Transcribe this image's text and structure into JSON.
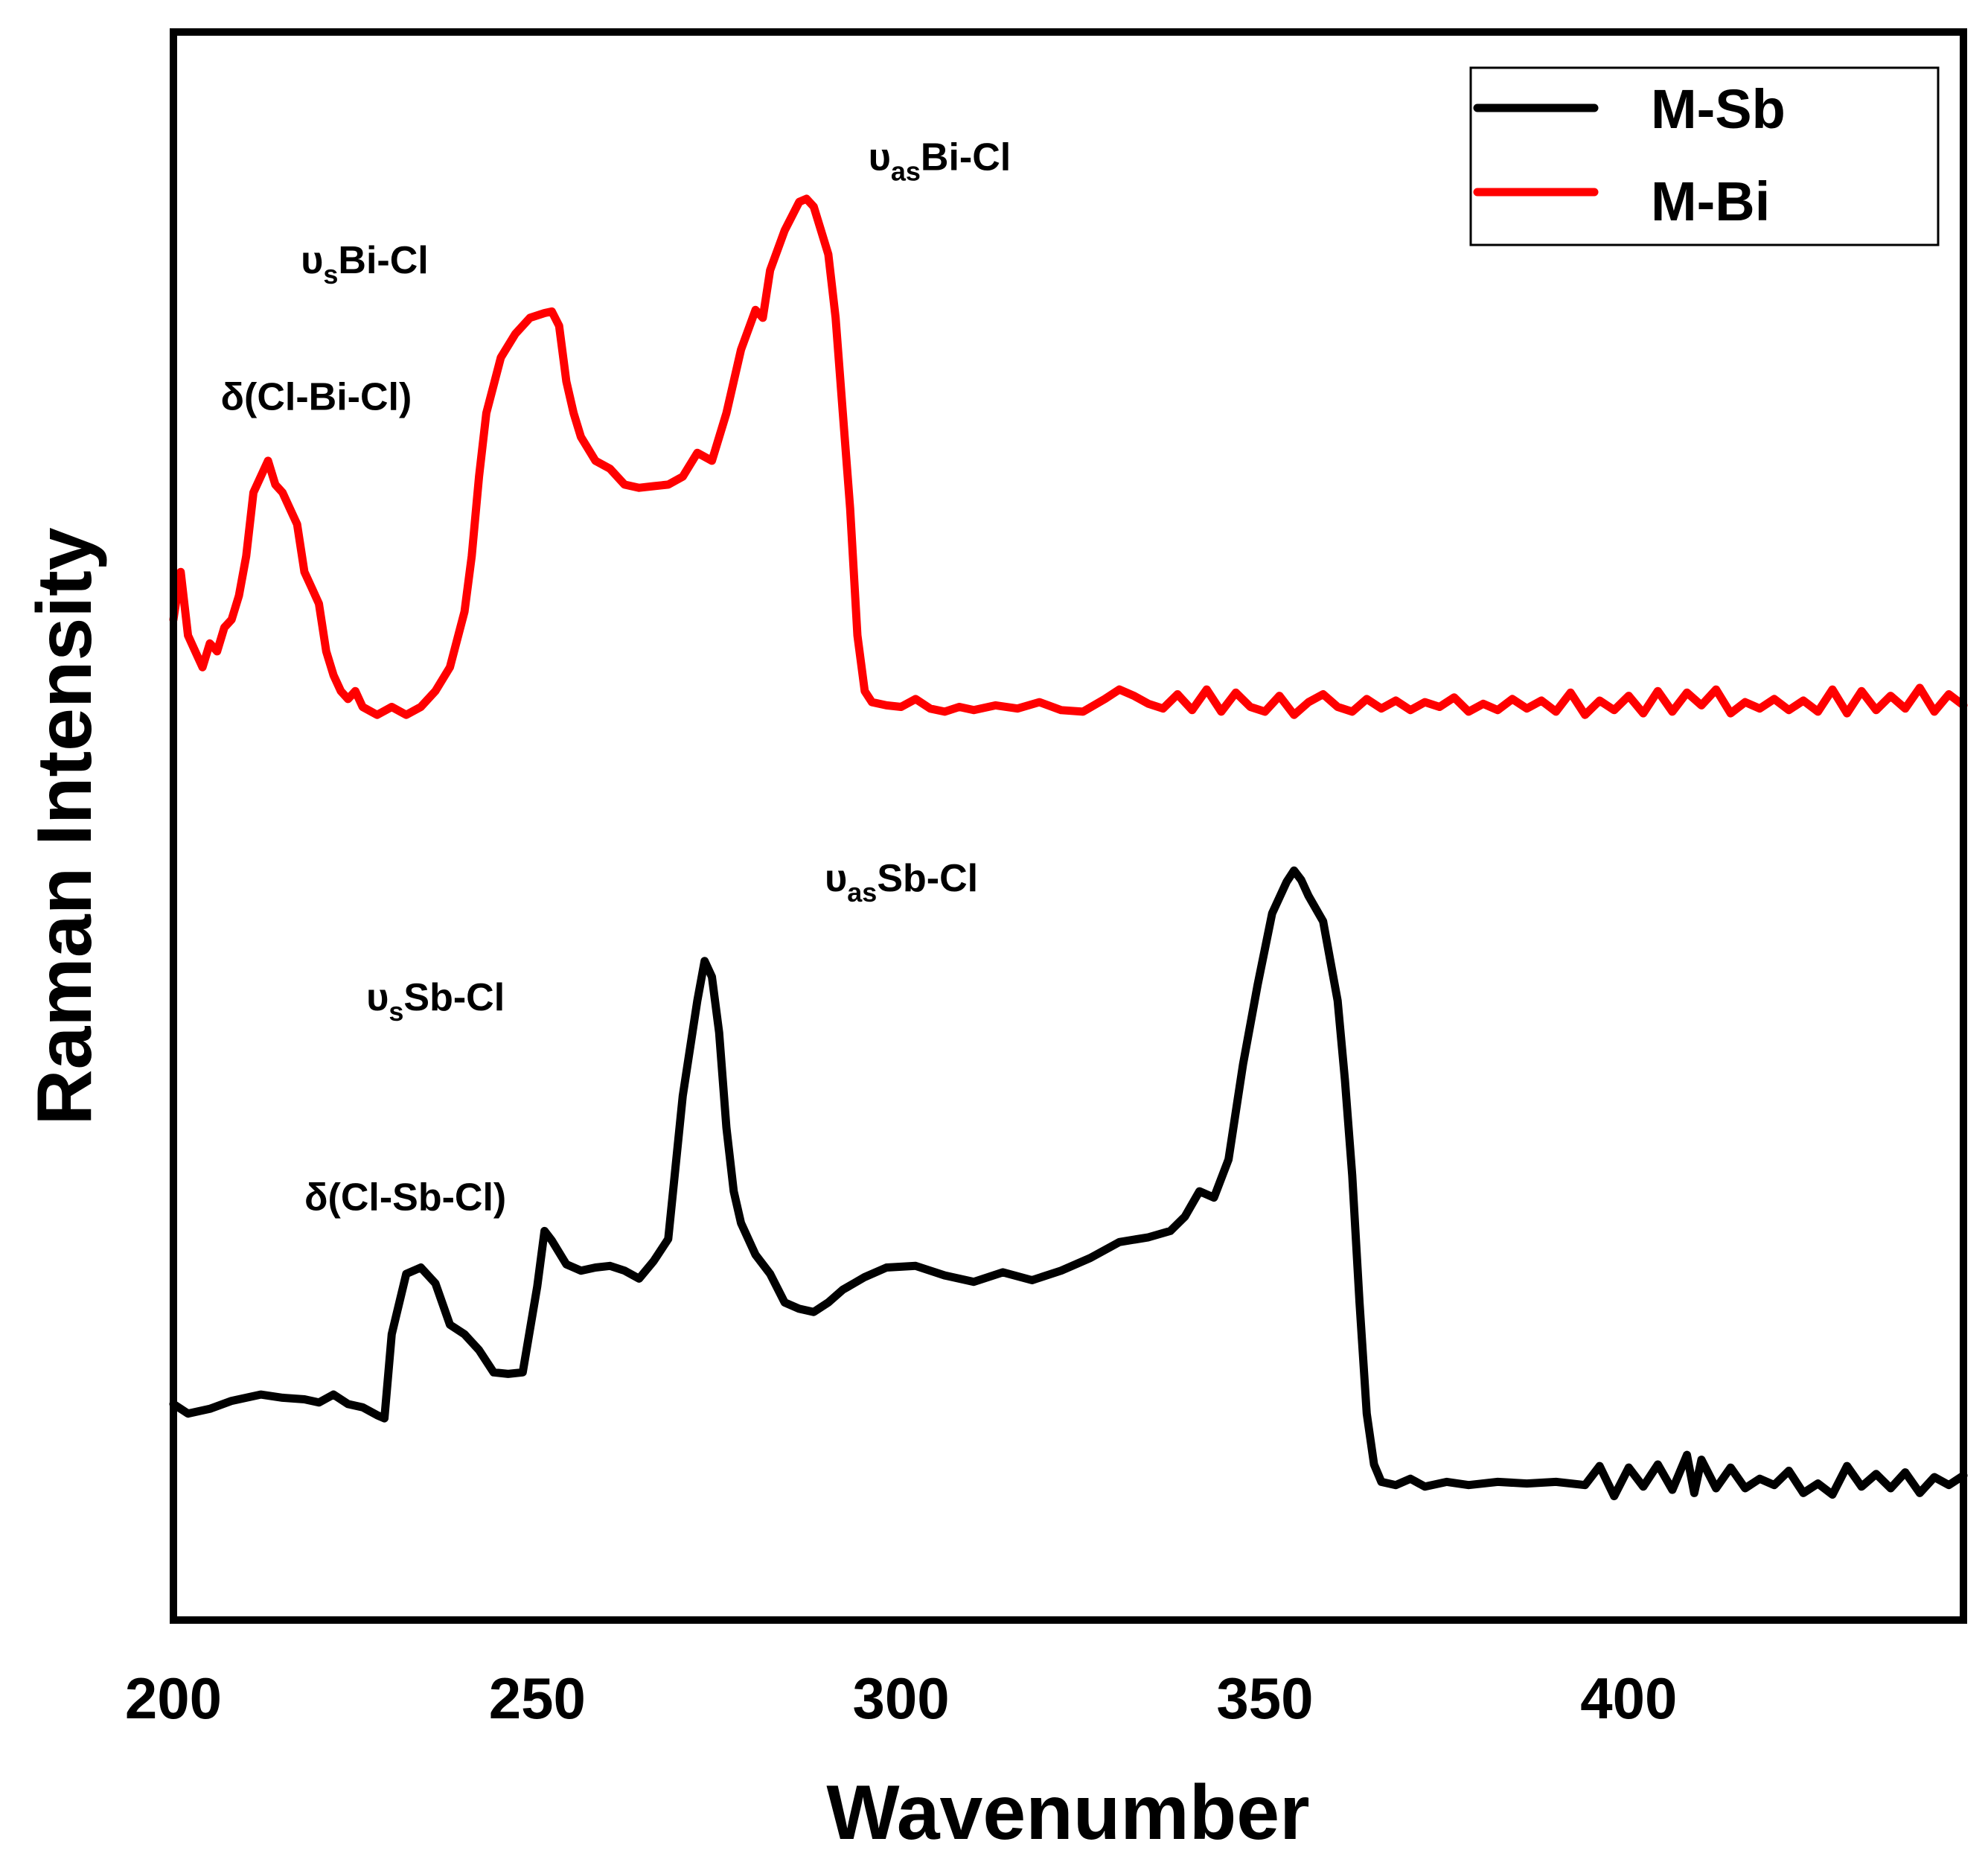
{
  "chart_data": {
    "type": "line",
    "title": "",
    "xlabel": "Wavenumber",
    "ylabel": "Raman Intensity",
    "xlim": [
      200,
      446
    ],
    "ylim": [
      0,
      100
    ],
    "xticks": [
      200,
      250,
      300,
      350,
      400
    ],
    "yticks_shown": false,
    "grid": false,
    "legend_position": "top-right",
    "series": [
      {
        "name": "M-Sb",
        "color": "#000000",
        "points": [
          [
            200,
            13.6
          ],
          [
            202,
            13.0
          ],
          [
            205,
            13.3
          ],
          [
            208,
            13.8
          ],
          [
            212,
            14.2
          ],
          [
            215,
            14.0
          ],
          [
            218,
            13.9
          ],
          [
            220,
            13.7
          ],
          [
            222,
            14.2
          ],
          [
            224,
            13.6
          ],
          [
            226,
            13.4
          ],
          [
            228,
            12.9
          ],
          [
            229,
            12.7
          ],
          [
            230,
            18.0
          ],
          [
            232,
            21.8
          ],
          [
            234,
            22.2
          ],
          [
            236,
            21.2
          ],
          [
            238,
            18.6
          ],
          [
            240,
            18.0
          ],
          [
            242,
            17.0
          ],
          [
            244,
            15.6
          ],
          [
            246,
            15.5
          ],
          [
            248,
            15.6
          ],
          [
            250,
            21.0
          ],
          [
            251,
            24.5
          ],
          [
            252,
            23.9
          ],
          [
            254,
            22.4
          ],
          [
            256,
            22.0
          ],
          [
            258,
            22.2
          ],
          [
            260,
            22.3
          ],
          [
            262,
            22.0
          ],
          [
            264,
            21.5
          ],
          [
            266,
            22.6
          ],
          [
            268,
            24.0
          ],
          [
            270,
            33.0
          ],
          [
            272,
            39.0
          ],
          [
            273,
            41.5
          ],
          [
            274,
            40.5
          ],
          [
            275,
            37.0
          ],
          [
            276,
            31.0
          ],
          [
            277,
            27.0
          ],
          [
            278,
            25.0
          ],
          [
            280,
            23.0
          ],
          [
            282,
            21.8
          ],
          [
            284,
            20.0
          ],
          [
            286,
            19.6
          ],
          [
            288,
            19.4
          ],
          [
            290,
            20.0
          ],
          [
            292,
            20.8
          ],
          [
            295,
            21.6
          ],
          [
            298,
            22.2
          ],
          [
            302,
            22.3
          ],
          [
            306,
            21.7
          ],
          [
            310,
            21.3
          ],
          [
            314,
            21.9
          ],
          [
            318,
            21.4
          ],
          [
            322,
            22.0
          ],
          [
            326,
            22.8
          ],
          [
            330,
            23.8
          ],
          [
            334,
            24.1
          ],
          [
            337,
            24.5
          ],
          [
            339,
            25.4
          ],
          [
            341,
            27.0
          ],
          [
            343,
            26.6
          ],
          [
            345,
            29.0
          ],
          [
            347,
            35.0
          ],
          [
            349,
            40.0
          ],
          [
            351,
            44.5
          ],
          [
            353,
            46.5
          ],
          [
            354,
            47.2
          ],
          [
            355,
            46.6
          ],
          [
            356,
            45.6
          ],
          [
            358,
            44.0
          ],
          [
            360,
            39.0
          ],
          [
            361,
            34.0
          ],
          [
            362,
            28.0
          ],
          [
            363,
            20.0
          ],
          [
            364,
            13.0
          ],
          [
            365,
            9.8
          ],
          [
            366,
            8.7
          ],
          [
            368,
            8.5
          ],
          [
            370,
            8.9
          ],
          [
            372,
            8.4
          ],
          [
            375,
            8.7
          ],
          [
            378,
            8.5
          ],
          [
            382,
            8.7
          ],
          [
            386,
            8.6
          ],
          [
            390,
            8.7
          ],
          [
            394,
            8.5
          ],
          [
            396,
            9.7
          ],
          [
            398,
            7.8
          ],
          [
            400,
            9.6
          ],
          [
            402,
            8.4
          ],
          [
            404,
            9.8
          ],
          [
            406,
            8.2
          ],
          [
            408,
            10.4
          ],
          [
            409,
            8.0
          ],
          [
            410,
            10.1
          ],
          [
            412,
            8.3
          ],
          [
            414,
            9.6
          ],
          [
            416,
            8.3
          ],
          [
            418,
            8.9
          ],
          [
            420,
            8.5
          ],
          [
            422,
            9.4
          ],
          [
            424,
            8.0
          ],
          [
            426,
            8.6
          ],
          [
            428,
            7.9
          ],
          [
            430,
            9.7
          ],
          [
            432,
            8.4
          ],
          [
            434,
            9.2
          ],
          [
            436,
            8.3
          ],
          [
            438,
            9.3
          ],
          [
            440,
            8.0
          ],
          [
            442,
            9.0
          ],
          [
            444,
            8.5
          ],
          [
            446,
            9.1
          ]
        ]
      },
      {
        "name": "M-Bi",
        "color": "#ff0000",
        "points": [
          [
            200,
            63.0
          ],
          [
            201,
            66.0
          ],
          [
            202,
            62.0
          ],
          [
            203,
            61.0
          ],
          [
            204,
            60.0
          ],
          [
            205,
            61.5
          ],
          [
            206,
            61.0
          ],
          [
            207,
            62.5
          ],
          [
            208,
            63.0
          ],
          [
            209,
            64.5
          ],
          [
            210,
            67.0
          ],
          [
            211,
            71.0
          ],
          [
            212,
            72.0
          ],
          [
            213,
            73.0
          ],
          [
            214,
            71.5
          ],
          [
            215,
            71.0
          ],
          [
            216,
            70.0
          ],
          [
            217,
            69.0
          ],
          [
            218,
            66.0
          ],
          [
            219,
            65.0
          ],
          [
            220,
            64.0
          ],
          [
            221,
            61.0
          ],
          [
            222,
            59.5
          ],
          [
            223,
            58.5
          ],
          [
            224,
            58.0
          ],
          [
            225,
            58.5
          ],
          [
            226,
            57.5
          ],
          [
            228,
            57.0
          ],
          [
            230,
            57.5
          ],
          [
            232,
            57.0
          ],
          [
            234,
            57.5
          ],
          [
            236,
            58.5
          ],
          [
            238,
            60.0
          ],
          [
            240,
            63.5
          ],
          [
            241,
            67.0
          ],
          [
            242,
            72.0
          ],
          [
            243,
            76.0
          ],
          [
            245,
            79.5
          ],
          [
            247,
            81.0
          ],
          [
            249,
            82.0
          ],
          [
            251,
            82.3
          ],
          [
            252,
            82.4
          ],
          [
            253,
            81.5
          ],
          [
            254,
            78.0
          ],
          [
            255,
            76.0
          ],
          [
            256,
            74.5
          ],
          [
            258,
            73.0
          ],
          [
            260,
            72.5
          ],
          [
            262,
            71.5
          ],
          [
            264,
            71.3
          ],
          [
            266,
            71.4
          ],
          [
            268,
            71.5
          ],
          [
            270,
            72.0
          ],
          [
            272,
            73.5
          ],
          [
            274,
            73.0
          ],
          [
            276,
            76.0
          ],
          [
            278,
            80.0
          ],
          [
            280,
            82.5
          ],
          [
            281,
            82.0
          ],
          [
            282,
            85.0
          ],
          [
            284,
            87.5
          ],
          [
            286,
            89.3
          ],
          [
            287,
            89.5
          ],
          [
            288,
            89.0
          ],
          [
            289,
            87.5
          ],
          [
            290,
            86.0
          ],
          [
            291,
            82.0
          ],
          [
            292,
            76.0
          ],
          [
            293,
            70.0
          ],
          [
            294,
            62.0
          ],
          [
            295,
            58.5
          ],
          [
            296,
            57.8
          ],
          [
            298,
            57.6
          ],
          [
            300,
            57.5
          ],
          [
            302,
            58.0
          ],
          [
            304,
            57.4
          ],
          [
            306,
            57.2
          ],
          [
            308,
            57.5
          ],
          [
            310,
            57.3
          ],
          [
            313,
            57.6
          ],
          [
            316,
            57.4
          ],
          [
            319,
            57.8
          ],
          [
            322,
            57.3
          ],
          [
            325,
            57.2
          ],
          [
            328,
            58.0
          ],
          [
            330,
            58.6
          ],
          [
            332,
            58.2
          ],
          [
            334,
            57.7
          ],
          [
            336,
            57.4
          ],
          [
            338,
            58.3
          ],
          [
            340,
            57.3
          ],
          [
            342,
            58.6
          ],
          [
            344,
            57.2
          ],
          [
            346,
            58.4
          ],
          [
            348,
            57.5
          ],
          [
            350,
            57.2
          ],
          [
            352,
            58.2
          ],
          [
            354,
            57.0
          ],
          [
            356,
            57.8
          ],
          [
            358,
            58.3
          ],
          [
            360,
            57.5
          ],
          [
            362,
            57.2
          ],
          [
            364,
            58.0
          ],
          [
            366,
            57.4
          ],
          [
            368,
            57.9
          ],
          [
            370,
            57.3
          ],
          [
            372,
            57.8
          ],
          [
            374,
            57.5
          ],
          [
            376,
            58.1
          ],
          [
            378,
            57.2
          ],
          [
            380,
            57.7
          ],
          [
            382,
            57.3
          ],
          [
            384,
            58.0
          ],
          [
            386,
            57.4
          ],
          [
            388,
            57.9
          ],
          [
            390,
            57.2
          ],
          [
            392,
            58.4
          ],
          [
            394,
            57.0
          ],
          [
            396,
            57.9
          ],
          [
            398,
            57.3
          ],
          [
            400,
            58.2
          ],
          [
            402,
            57.1
          ],
          [
            404,
            58.5
          ],
          [
            406,
            57.2
          ],
          [
            408,
            58.4
          ],
          [
            410,
            57.6
          ],
          [
            412,
            58.6
          ],
          [
            414,
            57.1
          ],
          [
            416,
            57.8
          ],
          [
            418,
            57.4
          ],
          [
            420,
            58.0
          ],
          [
            422,
            57.3
          ],
          [
            424,
            57.9
          ],
          [
            426,
            57.2
          ],
          [
            428,
            58.6
          ],
          [
            430,
            57.1
          ],
          [
            432,
            58.5
          ],
          [
            434,
            57.3
          ],
          [
            436,
            58.2
          ],
          [
            438,
            57.4
          ],
          [
            440,
            58.7
          ],
          [
            442,
            57.2
          ],
          [
            444,
            58.3
          ],
          [
            446,
            57.6
          ]
        ]
      }
    ],
    "annotations": [
      {
        "base": "δ(Cl-Bi-Cl)",
        "sub": "",
        "rest": "",
        "x": 206.5,
        "y": 76.2
      },
      {
        "base": "υ",
        "sub": "s",
        "rest": "Bi-Cl",
        "x": 217.5,
        "y": 84.8
      },
      {
        "base": "υ",
        "sub": "as",
        "rest": "Bi-Cl",
        "x": 295.5,
        "y": 91.3
      },
      {
        "base": "δ(Cl-Sb-Cl)",
        "sub": "",
        "rest": "",
        "x": 218,
        "y": 25.8
      },
      {
        "base": "υ",
        "sub": "s",
        "rest": "Sb-Cl",
        "x": 226.5,
        "y": 38.4
      },
      {
        "base": "υ",
        "sub": "as",
        "rest": "Sb-Cl",
        "x": 289.5,
        "y": 45.9
      }
    ]
  }
}
